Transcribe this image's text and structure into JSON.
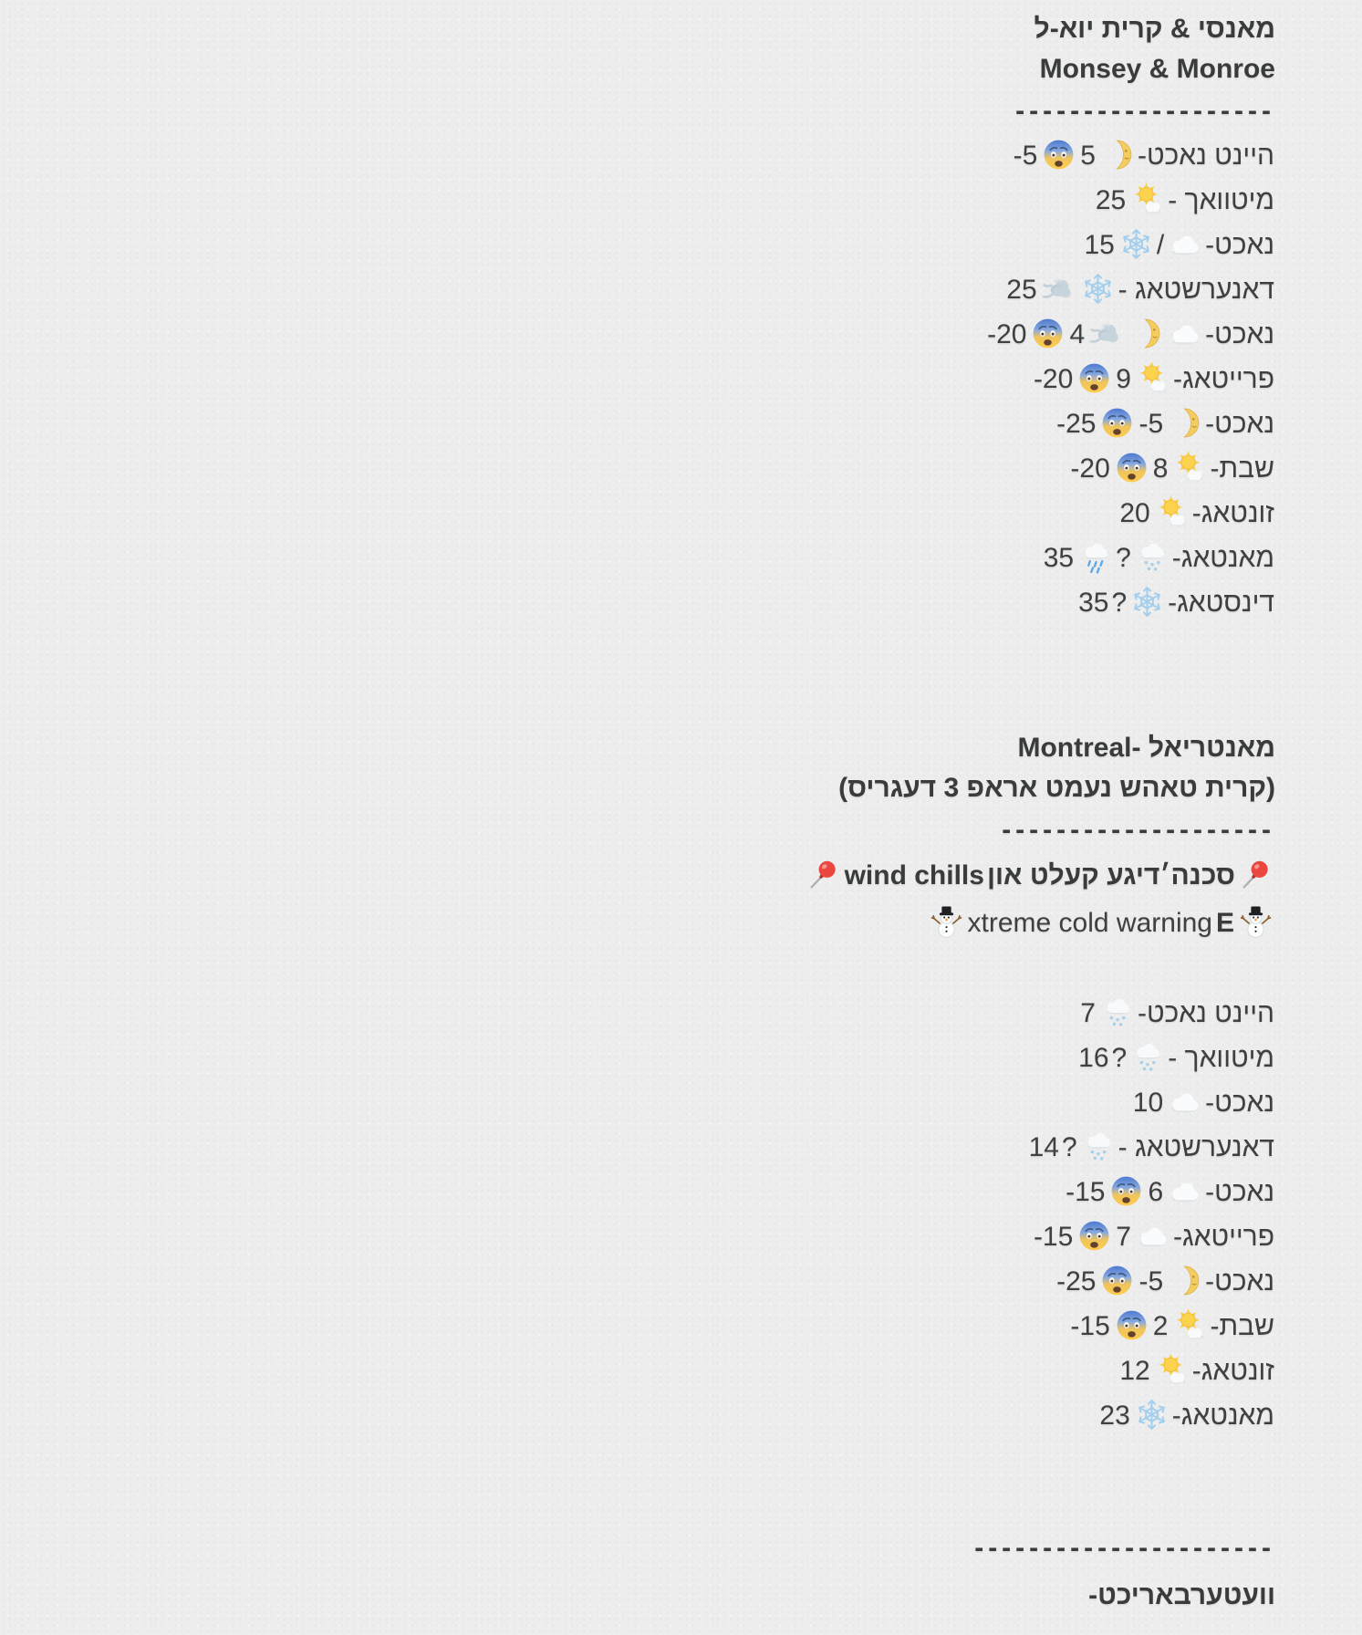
{
  "page": {
    "background": "#ecedec",
    "text_color": "#3f4042"
  },
  "emoji_legend": {
    "first-quarter-moon-face": "🌛",
    "fearful-face": "😨",
    "sun-behind-small-cloud": "🌤️",
    "snowflake": "❄️",
    "cloud": "☁️",
    "wind-gust": "💨",
    "cloud-with-snow": "🌨️",
    "cloud-with-rain": "🌧️",
    "pushpin": "📌",
    "snowman": "⛄️"
  },
  "sections": [
    {
      "title_he": "מאנסי & קרית יוא-ל",
      "title_en": "Monsey & Monroe",
      "divider": "-------------------",
      "lines": [
        [
          [
            "he",
            "היינט נאכט-"
          ],
          [
            "em",
            "first-quarter-moon-face"
          ],
          [
            "ltr",
            "5"
          ],
          [
            "em",
            "fearful-face"
          ],
          [
            "ltr",
            "-5"
          ]
        ],
        [
          [
            "he",
            "מיטוואך -"
          ],
          [
            "em",
            "sun-behind-small-cloud"
          ],
          [
            "ltr",
            "25"
          ]
        ],
        [
          [
            "he",
            "נאכט-"
          ],
          [
            "em",
            "cloud"
          ],
          [
            "he",
            "/"
          ],
          [
            "em",
            "snowflake"
          ],
          [
            "ltr",
            "15"
          ]
        ],
        [
          [
            "he",
            "דאנערשטאג -"
          ],
          [
            "em",
            "snowflake"
          ],
          [
            "em",
            "wind-gust"
          ],
          [
            "ltr",
            "25"
          ]
        ],
        [
          [
            "he",
            "נאכט-"
          ],
          [
            "em",
            "cloud"
          ],
          [
            "em",
            "first-quarter-moon-face"
          ],
          [
            "em",
            "wind-gust"
          ],
          [
            "ltr",
            "4"
          ],
          [
            "em",
            "fearful-face"
          ],
          [
            "ltr",
            "-20"
          ]
        ],
        [
          [
            "he",
            "פרייטאג-"
          ],
          [
            "em",
            "sun-behind-small-cloud"
          ],
          [
            "ltr",
            "9"
          ],
          [
            "em",
            "fearful-face"
          ],
          [
            "ltr",
            "-20"
          ]
        ],
        [
          [
            "he",
            "נאכט-"
          ],
          [
            "em",
            "first-quarter-moon-face"
          ],
          [
            "ltr",
            "-5"
          ],
          [
            "em",
            "fearful-face"
          ],
          [
            "ltr",
            "-25"
          ]
        ],
        [
          [
            "he",
            "שבת-"
          ],
          [
            "em",
            "sun-behind-small-cloud"
          ],
          [
            "ltr",
            "8"
          ],
          [
            "em",
            "fearful-face"
          ],
          [
            "ltr",
            "-20"
          ]
        ],
        [
          [
            "he",
            "זונטאג-"
          ],
          [
            "em",
            "sun-behind-small-cloud"
          ],
          [
            "ltr",
            "20"
          ]
        ],
        [
          [
            "he",
            "מאנטאג-"
          ],
          [
            "em",
            "cloud-with-snow"
          ],
          [
            "he",
            "?"
          ],
          [
            "em",
            "cloud-with-rain"
          ],
          [
            "ltr",
            "35"
          ]
        ],
        [
          [
            "he",
            "דינסטאג-"
          ],
          [
            "em",
            "snowflake"
          ],
          [
            "he",
            "?"
          ],
          [
            "ltr",
            "35"
          ]
        ]
      ]
    },
    {
      "title": "מאנטריאל -Montreal",
      "subtitle": "(קרית טאהש נעמט אראפ 3 דעגריס)",
      "divider": "--------------------",
      "alerts": [
        [
          [
            "em",
            "pushpin"
          ],
          [
            "he",
            "סכנה׳דיגע קעלט און"
          ],
          [
            "ltr",
            "wind chills"
          ],
          [
            "em",
            "pushpin"
          ]
        ],
        [
          [
            "em",
            "snowman"
          ],
          [
            "ltrb",
            "E"
          ],
          [
            "ltr",
            "xtreme cold warning"
          ],
          [
            "em",
            "snowman"
          ]
        ]
      ],
      "lines": [
        [
          [
            "he",
            "היינט נאכט-"
          ],
          [
            "em",
            "cloud-with-snow"
          ],
          [
            "ltr",
            "7"
          ]
        ],
        [
          [
            "he",
            "מיטוואך -"
          ],
          [
            "em",
            "cloud-with-snow"
          ],
          [
            "he",
            "?"
          ],
          [
            "ltr",
            "16"
          ]
        ],
        [
          [
            "he",
            "נאכט-"
          ],
          [
            "em",
            "cloud"
          ],
          [
            "ltr",
            "10"
          ]
        ],
        [
          [
            "he",
            "דאנערשטאג -"
          ],
          [
            "em",
            "cloud-with-snow"
          ],
          [
            "he",
            "?"
          ],
          [
            "ltr",
            "14"
          ]
        ],
        [
          [
            "he",
            "נאכט-"
          ],
          [
            "em",
            "cloud"
          ],
          [
            "ltr",
            "6"
          ],
          [
            "em",
            "fearful-face"
          ],
          [
            "ltr",
            "-15"
          ]
        ],
        [
          [
            "he",
            "פרייטאג-"
          ],
          [
            "em",
            "cloud"
          ],
          [
            "ltr",
            "7"
          ],
          [
            "em",
            "fearful-face"
          ],
          [
            "ltr",
            "-15"
          ]
        ],
        [
          [
            "he",
            "נאכט-"
          ],
          [
            "em",
            "first-quarter-moon-face"
          ],
          [
            "ltr",
            "-5"
          ],
          [
            "em",
            "fearful-face"
          ],
          [
            "ltr",
            "-25"
          ]
        ],
        [
          [
            "he",
            "שבת-"
          ],
          [
            "em",
            "sun-behind-small-cloud"
          ],
          [
            "ltr",
            "2"
          ],
          [
            "em",
            "fearful-face"
          ],
          [
            "ltr",
            "-15"
          ]
        ],
        [
          [
            "he",
            "זונטאג-"
          ],
          [
            "em",
            "sun-behind-small-cloud"
          ],
          [
            "ltr",
            "12"
          ]
        ],
        [
          [
            "he",
            "מאנטאג-"
          ],
          [
            "em",
            "snowflake"
          ],
          [
            "ltr",
            "23"
          ]
        ]
      ]
    }
  ],
  "footer": {
    "divider": "----------------------",
    "label": "וועטערבאריכט-"
  }
}
